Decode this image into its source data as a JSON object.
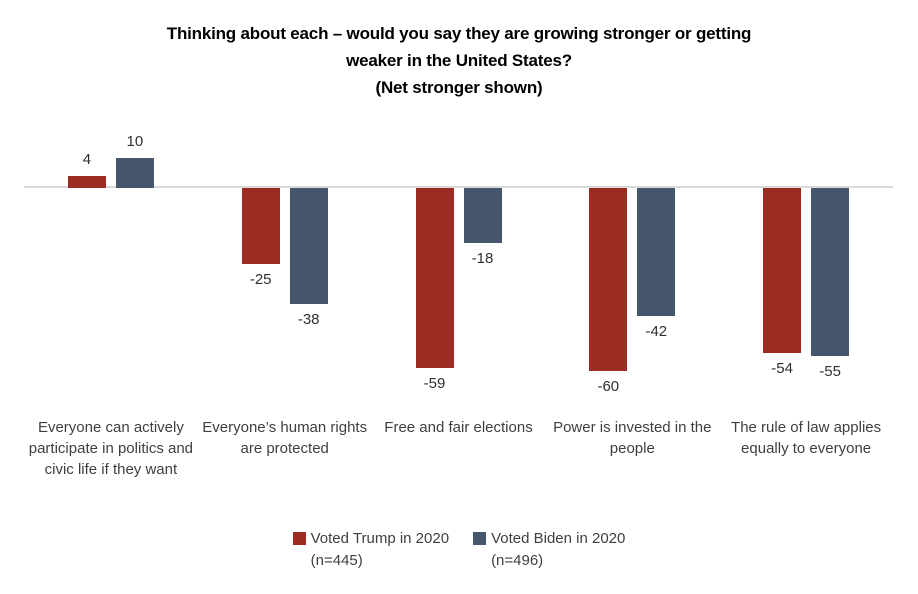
{
  "chart_data": {
    "type": "bar",
    "title": "Thinking about each – would you say they are growing stronger or getting weaker in the United States?",
    "title_lines": [
      "Thinking about each – would you say they are growing stronger or getting",
      "weaker in the United States?"
    ],
    "subtitle": "(Net stronger shown)",
    "categories": [
      "Everyone can actively participate in politics and civic life if they want",
      "Everyone’s human rights are protected",
      "Free and fair elections",
      "Power is invested in the people",
      "The rule of law applies equally to everyone"
    ],
    "series": [
      {
        "name": "Voted Trump in 2020",
        "n_label": "(n=445)",
        "color": "#9a2c24",
        "values": [
          4,
          -25,
          -59,
          -60,
          -54
        ]
      },
      {
        "name": "Voted Biden in 2020",
        "n_label": "(n=496)",
        "color": "#46566c",
        "values": [
          10,
          -38,
          -18,
          -42,
          -55
        ]
      }
    ],
    "value_labels": "outside-end",
    "legend_position": "bottom",
    "gridlines": false,
    "y_axis_hidden": true,
    "baseline_color": "#d9d9d9",
    "ylim": [
      -65,
      12
    ]
  }
}
